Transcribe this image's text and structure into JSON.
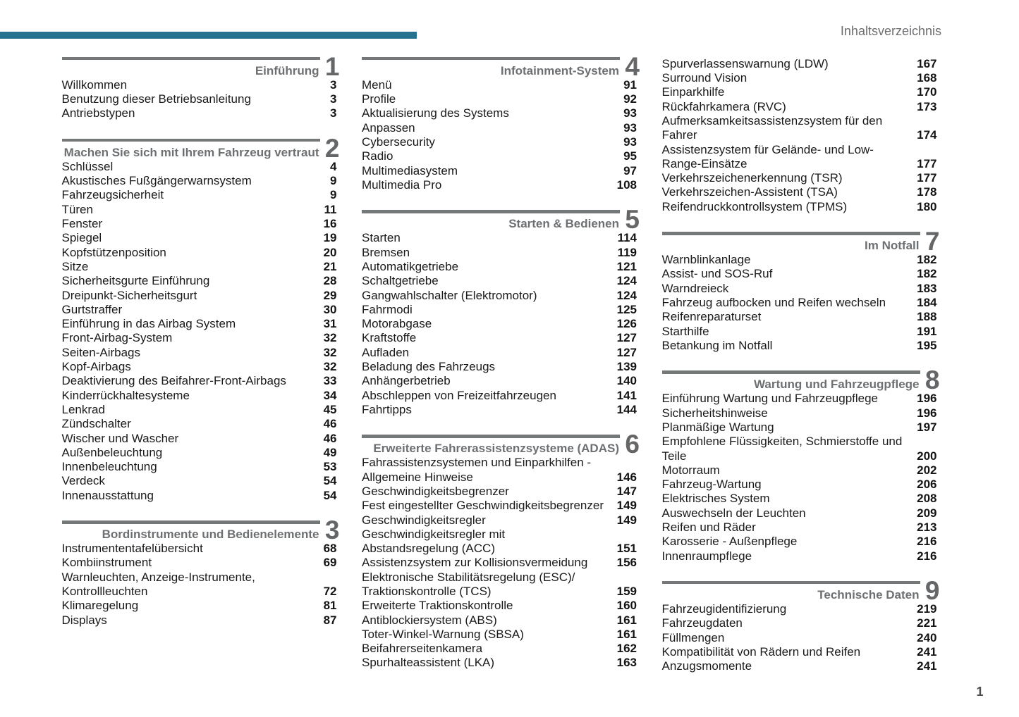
{
  "page": {
    "header_label": "Inhaltsverzeichnis",
    "footer_page_number": "1",
    "colors": {
      "accent": "#27728e",
      "bar_gray": "#747878",
      "title_gray": "#6d7072",
      "digit_gray": "#646668",
      "text": "#1a1a1a",
      "page_number": "#141414",
      "header_gray": "#6d6e70",
      "footer_gray": "#4c4d4f"
    }
  },
  "columns": [
    {
      "blocks": [
        {
          "number": "1",
          "title": "Einführung",
          "entries": [
            {
              "label": "Willkommen",
              "page": "3"
            },
            {
              "label": "Benutzung dieser Betriebsanleitung",
              "page": "3"
            },
            {
              "label": "Antriebstypen",
              "page": "3"
            }
          ]
        },
        {
          "number": "2",
          "title": "Machen Sie sich mit Ihrem Fahrzeug vertraut",
          "entries": [
            {
              "label": "Schlüssel",
              "page": "4"
            },
            {
              "label": "Akustisches Fußgängerwarnsystem",
              "page": "9"
            },
            {
              "label": "Fahrzeugsicherheit",
              "page": "9"
            },
            {
              "label": "Türen",
              "page": "11"
            },
            {
              "label": "Fenster",
              "page": "16"
            },
            {
              "label": "Spiegel",
              "page": "19"
            },
            {
              "label": "Kopfstützenposition",
              "page": "20"
            },
            {
              "label": "Sitze",
              "page": "21"
            },
            {
              "label": "Sicherheitsgurte Einführung",
              "page": "28"
            },
            {
              "label": "Dreipunkt-Sicherheitsgurt",
              "page": "29"
            },
            {
              "label": "Gurtstraffer",
              "page": "30"
            },
            {
              "label": "Einführung in das Airbag System",
              "page": "31"
            },
            {
              "label": "Front-Airbag-System",
              "page": "32"
            },
            {
              "label": "Seiten-Airbags",
              "page": "32"
            },
            {
              "label": "Kopf-Airbags",
              "page": "32"
            },
            {
              "label": "Deaktivierung des Beifahrer-Front-Airbags",
              "page": "33"
            },
            {
              "label": "Kinderrückhaltesysteme",
              "page": "34"
            },
            {
              "label": "Lenkrad",
              "page": "45"
            },
            {
              "label": "Zündschalter",
              "page": "46"
            },
            {
              "label": "Wischer und Wascher",
              "page": "46"
            },
            {
              "label": "Außenbeleuchtung",
              "page": "49"
            },
            {
              "label": "Innenbeleuchtung",
              "page": "53"
            },
            {
              "label": "Verdeck",
              "page": "54"
            },
            {
              "label": "Innenausstattung",
              "page": "54"
            }
          ]
        },
        {
          "number": "3",
          "title": "Bordinstrumente und Bedienelemente",
          "entries": [
            {
              "label": "Instrumententafelübersicht",
              "page": "68"
            },
            {
              "label": "Kombiinstrument",
              "page": "69"
            },
            {
              "label": "Warnleuchten, Anzeige-Instrumente,\nKontrollleuchten",
              "page": "72"
            },
            {
              "label": "Klimaregelung",
              "page": "81"
            },
            {
              "label": "Displays",
              "page": "87"
            }
          ]
        }
      ]
    },
    {
      "blocks": [
        {
          "number": "4",
          "title": "Infotainment-System",
          "entries": [
            {
              "label": "Menü",
              "page": "91"
            },
            {
              "label": "Profile",
              "page": "92"
            },
            {
              "label": "Aktualisierung des Systems",
              "page": "93"
            },
            {
              "label": "Anpassen",
              "page": "93"
            },
            {
              "label": "Cybersecurity",
              "page": "93"
            },
            {
              "label": "Radio",
              "page": "95"
            },
            {
              "label": "Multimediasystem",
              "page": "97"
            },
            {
              "label": "Multimedia Pro",
              "page": "108"
            }
          ]
        },
        {
          "number": "5",
          "title": "Starten & Bedienen",
          "entries": [
            {
              "label": "Starten",
              "page": "114"
            },
            {
              "label": "Bremsen",
              "page": "119"
            },
            {
              "label": "Automatikgetriebe",
              "page": "121"
            },
            {
              "label": "Schaltgetriebe",
              "page": "124"
            },
            {
              "label": "Gangwahlschalter (Elektromotor)",
              "page": "124"
            },
            {
              "label": "Fahrmodi",
              "page": "125"
            },
            {
              "label": "Motorabgase",
              "page": "126"
            },
            {
              "label": "Kraftstoffe",
              "page": "127"
            },
            {
              "label": "Aufladen",
              "page": "127"
            },
            {
              "label": "Beladung des Fahrzeugs",
              "page": "139"
            },
            {
              "label": "Anhängerbetrieb",
              "page": "140"
            },
            {
              "label": "Abschleppen von Freizeitfahrzeugen",
              "page": "141"
            },
            {
              "label": "Fahrtipps",
              "page": "144"
            }
          ]
        },
        {
          "number": "6",
          "title": "Erweiterte Fahrerassistenzsysteme (ADAS)",
          "entries": [
            {
              "label": "Fahrassistenzsystemen und Einparkhilfen -\nAllgemeine Hinweise",
              "page": "146"
            },
            {
              "label": "Geschwindigkeitsbegrenzer",
              "page": "147"
            },
            {
              "label": "Fest eingestellter Geschwindigkeitsbegrenzer",
              "page": "149"
            },
            {
              "label": "Geschwindigkeitsregler",
              "page": "149"
            },
            {
              "label": "Geschwindigkeitsregler mit\nAbstandsregelung (ACC)",
              "page": "151"
            },
            {
              "label": "Assistenzsystem zur Kollisionsvermeidung",
              "page": "156"
            },
            {
              "label": "Elektronische Stabilitätsregelung (ESC)/\nTraktionskontrolle (TCS)",
              "page": "159"
            },
            {
              "label": "Erweiterte Traktionskontrolle",
              "page": "160"
            },
            {
              "label": "Antiblockiersystem (ABS)",
              "page": "161"
            },
            {
              "label": "Toter-Winkel-Warnung (SBSA)",
              "page": "161"
            },
            {
              "label": "Beifahrerseitenkamera",
              "page": "162"
            },
            {
              "label": "Spurhalteassistent (LKA)",
              "page": "163"
            }
          ]
        }
      ]
    },
    {
      "blocks": [
        {
          "number": null,
          "title": null,
          "entries": [
            {
              "label": "Spurverlassenswarnung (LDW)",
              "page": "167"
            },
            {
              "label": "Surround Vision",
              "page": "168"
            },
            {
              "label": "Einparkhilfe",
              "page": "170"
            },
            {
              "label": "Rückfahrkamera (RVC)",
              "page": "173"
            },
            {
              "label": "Aufmerksamkeitsassistenzsystem für den\nFahrer",
              "page": "174"
            },
            {
              "label": "Assistenzsystem für Gelände- und Low-\nRange-Einsätze",
              "page": "177"
            },
            {
              "label": "Verkehrszeichenerkennung (TSR)",
              "page": "177"
            },
            {
              "label": "Verkehrszeichen-Assistent (TSA)",
              "page": "178"
            },
            {
              "label": "Reifendruckkontrollsystem (TPMS)",
              "page": "180"
            }
          ]
        },
        {
          "number": "7",
          "title": "Im Notfall",
          "entries": [
            {
              "label": "Warnblinkanlage",
              "page": "182"
            },
            {
              "label": "Assist- und SOS-Ruf",
              "page": "182"
            },
            {
              "label": "Warndreieck",
              "page": "183"
            },
            {
              "label": "Fahrzeug aufbocken und Reifen wechseln",
              "page": "184"
            },
            {
              "label": "Reifenreparaturset",
              "page": "188"
            },
            {
              "label": "Starthilfe",
              "page": "191"
            },
            {
              "label": "Betankung im Notfall",
              "page": "195"
            }
          ]
        },
        {
          "number": "8",
          "title": "Wartung und Fahrzeugpflege",
          "entries": [
            {
              "label": "Einführung Wartung und Fahrzeugpflege",
              "page": "196"
            },
            {
              "label": "Sicherheitshinweise",
              "page": "196"
            },
            {
              "label": "Planmäßige Wartung",
              "page": "197"
            },
            {
              "label": "Empfohlene Flüssigkeiten, Schmierstoffe und\nTeile",
              "page": "200"
            },
            {
              "label": "Motorraum",
              "page": "202"
            },
            {
              "label": "Fahrzeug-Wartung",
              "page": "206"
            },
            {
              "label": "Elektrisches System",
              "page": "208"
            },
            {
              "label": "Auswechseln der Leuchten",
              "page": "209"
            },
            {
              "label": "Reifen und Räder",
              "page": "213"
            },
            {
              "label": "Karosserie - Außenpflege",
              "page": "216"
            },
            {
              "label": "Innenraumpflege",
              "page": "216"
            }
          ]
        },
        {
          "number": "9",
          "title": "Technische Daten",
          "entries": [
            {
              "label": "Fahrzeugidentifizierung",
              "page": "219"
            },
            {
              "label": "Fahrzeugdaten",
              "page": "221"
            },
            {
              "label": "Füllmengen",
              "page": "240"
            },
            {
              "label": "Kompatibilität von Rädern und Reifen",
              "page": "241"
            },
            {
              "label": "Anzugsmomente",
              "page": "241"
            }
          ]
        }
      ]
    }
  ]
}
